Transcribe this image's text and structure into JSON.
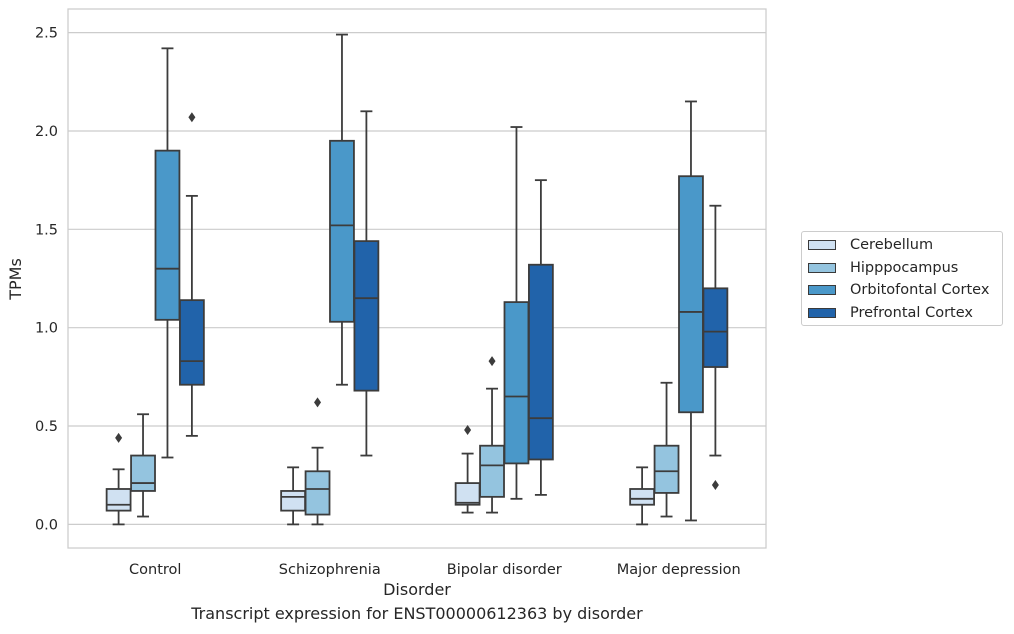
{
  "caption": "Transcript expression for ENST00000612363 by disorder",
  "chart_data": {
    "type": "box",
    "xlabel": "Disorder",
    "ylabel": "TPMs",
    "ylim": [
      -0.12,
      2.62
    ],
    "yticks": [
      "0.0",
      "0.5",
      "1.0",
      "1.5",
      "2.0",
      "2.5"
    ],
    "grid": "horizontal",
    "legend_position": "right",
    "categories": [
      "Control",
      "Schizophrenia",
      "Bipolar disorder",
      "Major depression"
    ],
    "series": [
      {
        "name": "Cerebellum",
        "color": "#d0e1f2",
        "boxes": [
          {
            "whislo": 0.0,
            "q1": 0.07,
            "med": 0.1,
            "q3": 0.18,
            "whishi": 0.28,
            "fliers": [
              0.44
            ]
          },
          {
            "whislo": 0.0,
            "q1": 0.07,
            "med": 0.14,
            "q3": 0.17,
            "whishi": 0.29,
            "fliers": []
          },
          {
            "whislo": 0.06,
            "q1": 0.1,
            "med": 0.11,
            "q3": 0.21,
            "whishi": 0.36,
            "fliers": [
              0.48
            ]
          },
          {
            "whislo": 0.0,
            "q1": 0.1,
            "med": 0.13,
            "q3": 0.18,
            "whishi": 0.29,
            "fliers": []
          }
        ]
      },
      {
        "name": "Hipppocampus",
        "color": "#94c4df",
        "boxes": [
          {
            "whislo": 0.04,
            "q1": 0.17,
            "med": 0.21,
            "q3": 0.35,
            "whishi": 0.56,
            "fliers": []
          },
          {
            "whislo": 0.0,
            "q1": 0.05,
            "med": 0.18,
            "q3": 0.27,
            "whishi": 0.39,
            "fliers": [
              0.62
            ]
          },
          {
            "whislo": 0.06,
            "q1": 0.14,
            "med": 0.3,
            "q3": 0.4,
            "whishi": 0.69,
            "fliers": [
              0.83
            ]
          },
          {
            "whislo": 0.04,
            "q1": 0.16,
            "med": 0.27,
            "q3": 0.4,
            "whishi": 0.72,
            "fliers": []
          }
        ]
      },
      {
        "name": "Orbitofontal Cortex",
        "color": "#4a98c9",
        "boxes": [
          {
            "whislo": 0.34,
            "q1": 1.04,
            "med": 1.3,
            "q3": 1.9,
            "whishi": 2.42,
            "fliers": []
          },
          {
            "whislo": 0.71,
            "q1": 1.03,
            "med": 1.52,
            "q3": 1.95,
            "whishi": 2.49,
            "fliers": []
          },
          {
            "whislo": 0.13,
            "q1": 0.31,
            "med": 0.65,
            "q3": 1.13,
            "whishi": 2.02,
            "fliers": []
          },
          {
            "whislo": 0.02,
            "q1": 0.57,
            "med": 1.08,
            "q3": 1.77,
            "whishi": 2.15,
            "fliers": []
          }
        ]
      },
      {
        "name": "Prefrontal Cortex",
        "color": "#2163aa",
        "boxes": [
          {
            "whislo": 0.45,
            "q1": 0.71,
            "med": 0.83,
            "q3": 1.14,
            "whishi": 1.67,
            "fliers": [
              2.07
            ]
          },
          {
            "whislo": 0.35,
            "q1": 0.68,
            "med": 1.15,
            "q3": 1.44,
            "whishi": 2.1,
            "fliers": []
          },
          {
            "whislo": 0.15,
            "q1": 0.33,
            "med": 0.54,
            "q3": 1.32,
            "whishi": 1.75,
            "fliers": []
          },
          {
            "whislo": 0.35,
            "q1": 0.8,
            "med": 0.98,
            "q3": 1.2,
            "whishi": 1.62,
            "fliers": [
              0.2
            ]
          }
        ]
      }
    ]
  }
}
